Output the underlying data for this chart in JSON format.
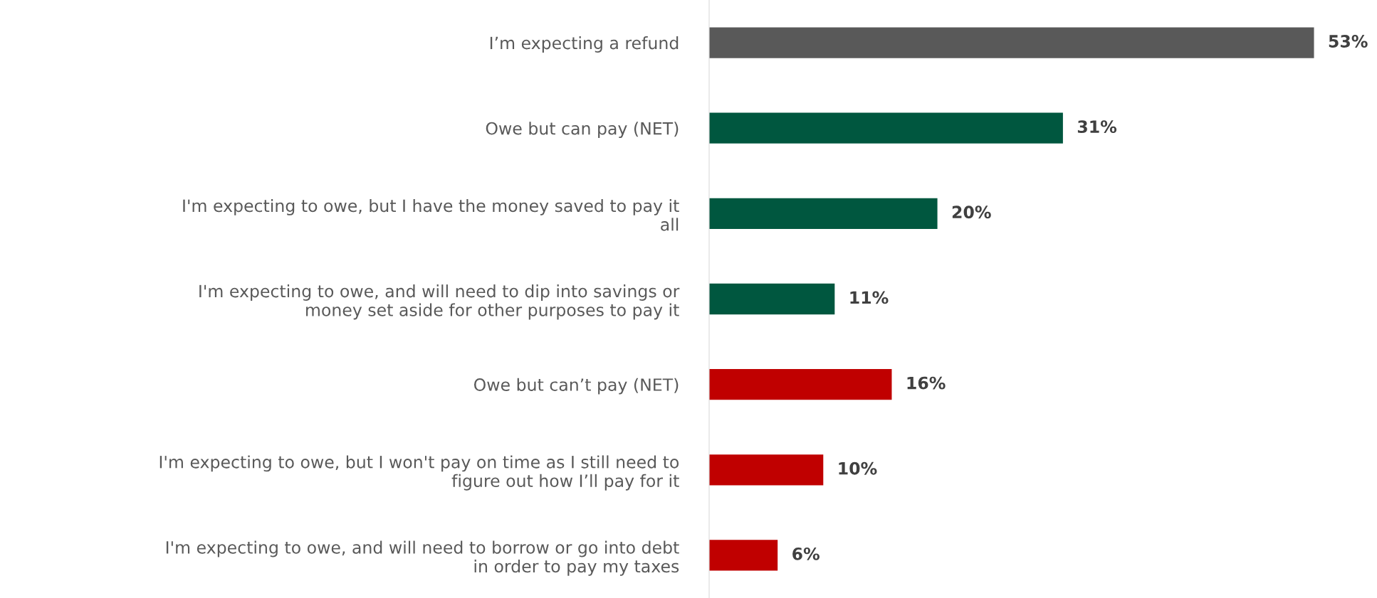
{
  "chart_data": {
    "type": "bar",
    "orientation": "horizontal",
    "data_labels": true,
    "grid": false,
    "legend": false,
    "categories": [
      "I’m expecting a refund",
      "Owe but can pay (NET)",
      "I'm expecting to owe, but I have the money saved to pay it\nall",
      "I'm expecting to owe, and will need to dip into savings or\nmoney set aside for other purposes to pay it",
      "Owe but can’t pay (NET)",
      "I'm expecting to owe, but I won't pay on time as I still need to\nfigure out how I’ll pay for it",
      "I'm expecting to owe, and will need to borrow or go into debt\nin order to pay my taxes"
    ],
    "values": [
      53,
      31,
      20,
      11,
      16,
      10,
      6
    ],
    "value_labels": [
      "53%",
      "31%",
      "20%",
      "11%",
      "16%",
      "10%",
      "6%"
    ],
    "colors": [
      "#595959",
      "#00573f",
      "#00573f",
      "#00573f",
      "#c00000",
      "#c00000",
      "#c00000"
    ]
  }
}
